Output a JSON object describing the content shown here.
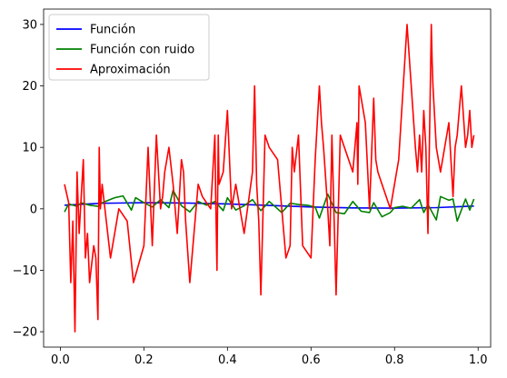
{
  "chart_data": {
    "type": "line",
    "title": "",
    "xlabel": "",
    "ylabel": "",
    "xlim": [
      -0.04,
      1.03
    ],
    "ylim": [
      -22.5,
      32.5
    ],
    "xticks": [
      0.0,
      0.2,
      0.4,
      0.6,
      0.8,
      1.0
    ],
    "xtick_labels": [
      "0.0",
      "0.2",
      "0.4",
      "0.6",
      "0.8",
      "1.0"
    ],
    "yticks": [
      -20,
      -10,
      0,
      10,
      20,
      30
    ],
    "ytick_labels": [
      "−20",
      "−10",
      "0",
      "10",
      "20",
      "30"
    ],
    "legend_position": "top-left",
    "series": [
      {
        "name": "Función",
        "color": "#0000ff",
        "x": [
          0.01,
          0.1,
          0.2,
          0.3,
          0.4,
          0.5,
          0.6,
          0.7,
          0.8,
          0.9,
          0.99
        ],
        "y": [
          0.6,
          0.9,
          1.0,
          0.95,
          0.8,
          0.55,
          0.3,
          0.15,
          0.1,
          0.2,
          0.45
        ]
      },
      {
        "name": "Función con ruido",
        "color": "#008000",
        "x": [
          0.01,
          0.02,
          0.04,
          0.05,
          0.07,
          0.09,
          0.1,
          0.13,
          0.15,
          0.17,
          0.18,
          0.2,
          0.22,
          0.24,
          0.26,
          0.27,
          0.29,
          0.31,
          0.33,
          0.35,
          0.37,
          0.39,
          0.4,
          0.42,
          0.44,
          0.46,
          0.48,
          0.5,
          0.53,
          0.55,
          0.57,
          0.59,
          0.61,
          0.62,
          0.64,
          0.66,
          0.68,
          0.7,
          0.72,
          0.74,
          0.75,
          0.77,
          0.79,
          0.8,
          0.82,
          0.84,
          0.86,
          0.87,
          0.88,
          0.9,
          0.91,
          0.93,
          0.94,
          0.95,
          0.97,
          0.98,
          0.99
        ],
        "y": [
          -0.5,
          0.8,
          0.4,
          1.0,
          0.6,
          0.4,
          1.0,
          1.8,
          2.1,
          -0.2,
          1.8,
          1.0,
          0.3,
          1.5,
          0.2,
          3.0,
          0.5,
          -0.5,
          1.2,
          0.6,
          1.2,
          -0.3,
          1.8,
          -0.2,
          0.5,
          1.5,
          -0.3,
          1.2,
          -0.6,
          0.9,
          0.7,
          0.6,
          0.3,
          -1.5,
          2.4,
          -0.6,
          -0.8,
          1.2,
          -0.4,
          -0.6,
          1.0,
          -1.3,
          -0.6,
          0.2,
          0.4,
          0.1,
          1.5,
          -0.6,
          0.7,
          -1.8,
          2.0,
          1.4,
          1.6,
          -2.0,
          1.6,
          -0.2,
          1.6
        ]
      },
      {
        "name": "Aproximación",
        "color": "#ff0000",
        "x": [
          0.01,
          0.02,
          0.025,
          0.03,
          0.035,
          0.04,
          0.045,
          0.05,
          0.055,
          0.06,
          0.065,
          0.07,
          0.08,
          0.085,
          0.09,
          0.093,
          0.096,
          0.1,
          0.11,
          0.12,
          0.14,
          0.16,
          0.175,
          0.2,
          0.21,
          0.22,
          0.23,
          0.235,
          0.24,
          0.245,
          0.25,
          0.26,
          0.27,
          0.28,
          0.29,
          0.295,
          0.3,
          0.31,
          0.32,
          0.33,
          0.34,
          0.36,
          0.37,
          0.372,
          0.375,
          0.378,
          0.38,
          0.39,
          0.4,
          0.41,
          0.42,
          0.44,
          0.46,
          0.465,
          0.47,
          0.475,
          0.48,
          0.49,
          0.5,
          0.52,
          0.54,
          0.55,
          0.555,
          0.56,
          0.57,
          0.58,
          0.6,
          0.61,
          0.62,
          0.625,
          0.63,
          0.64,
          0.645,
          0.65,
          0.66,
          0.67,
          0.68,
          0.69,
          0.7,
          0.71,
          0.712,
          0.715,
          0.72,
          0.73,
          0.74,
          0.75,
          0.755,
          0.76,
          0.77,
          0.79,
          0.81,
          0.83,
          0.85,
          0.855,
          0.86,
          0.865,
          0.87,
          0.875,
          0.88,
          0.888,
          0.89,
          0.892,
          0.9,
          0.91,
          0.92,
          0.93,
          0.935,
          0.94,
          0.945,
          0.95,
          0.96,
          0.97,
          0.975,
          0.98,
          0.985,
          0.99
        ],
        "y": [
          4,
          1,
          -12,
          -2,
          -20,
          6,
          -4,
          2,
          8,
          -8,
          -4,
          -12,
          -6,
          -8,
          -18,
          10,
          0,
          4,
          -2,
          -8,
          0,
          -2,
          -12,
          -6,
          10,
          -6,
          12,
          6,
          0,
          2,
          6,
          10,
          4,
          -4,
          8,
          6,
          -2,
          -12,
          -4,
          4,
          2,
          0,
          12,
          2,
          -10,
          12,
          4,
          6,
          16,
          0,
          4,
          -4,
          6,
          20,
          4,
          -2,
          -14,
          12,
          10,
          8,
          -8,
          -6,
          10,
          6,
          12,
          -6,
          -8,
          8,
          20,
          14,
          10,
          0,
          -6,
          12,
          -14,
          12,
          10,
          8,
          6,
          14,
          4,
          20,
          18,
          14,
          0,
          18,
          8,
          6,
          4,
          0,
          8,
          30,
          10,
          6,
          12,
          6,
          16,
          10,
          -4,
          30,
          24,
          20,
          10,
          6,
          10,
          14,
          8,
          2,
          10,
          12,
          20,
          10,
          12,
          16,
          10,
          12
        ]
      }
    ]
  }
}
